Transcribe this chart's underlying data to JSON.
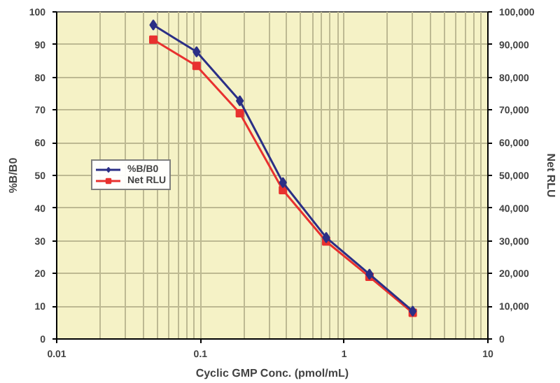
{
  "chart_data": {
    "type": "line",
    "x": [
      0.047,
      0.094,
      0.188,
      0.375,
      0.75,
      1.5,
      3.0
    ],
    "series": [
      {
        "name": "%B/B0",
        "color": "#2b2f86",
        "marker": "diamond",
        "values": [
          96,
          87.8,
          72.8,
          47.8,
          31,
          19.8,
          8.5
        ]
      },
      {
        "name": "Net RLU",
        "color": "#e8312f",
        "marker": "square",
        "axis": "y2",
        "values": [
          91500,
          83500,
          69000,
          45500,
          29800,
          19000,
          8000
        ]
      }
    ],
    "xlabel": "Cyclic GMP Conc. (pmol/mL)",
    "ylabel": "%B/B0",
    "y2label": "Net RLU",
    "log": "x",
    "xlim": [
      0.01,
      10
    ],
    "xticks": [
      0.01,
      0.1,
      1,
      10
    ],
    "ylim": [
      0,
      100
    ],
    "yticks": [
      0,
      10,
      20,
      30,
      40,
      50,
      60,
      70,
      80,
      90,
      100
    ],
    "y2lim": [
      0,
      100000
    ],
    "y2ticks": [
      0,
      {
        "value": 10000,
        "label": "10,000"
      },
      {
        "value": 20000,
        "label": "20,000"
      },
      {
        "value": 30000,
        "label": "30,000"
      },
      {
        "value": 40000,
        "label": "40,000"
      },
      {
        "value": 50000,
        "label": "50,000"
      },
      {
        "value": 60000,
        "label": "60,000"
      },
      {
        "value": 70000,
        "label": "70,000"
      },
      {
        "value": 80000,
        "label": "80,000"
      },
      {
        "value": 90000,
        "label": "90,000"
      },
      {
        "value": 100000,
        "label": "100,000"
      }
    ],
    "grid": true,
    "legend": "left",
    "line_style": "solid"
  }
}
